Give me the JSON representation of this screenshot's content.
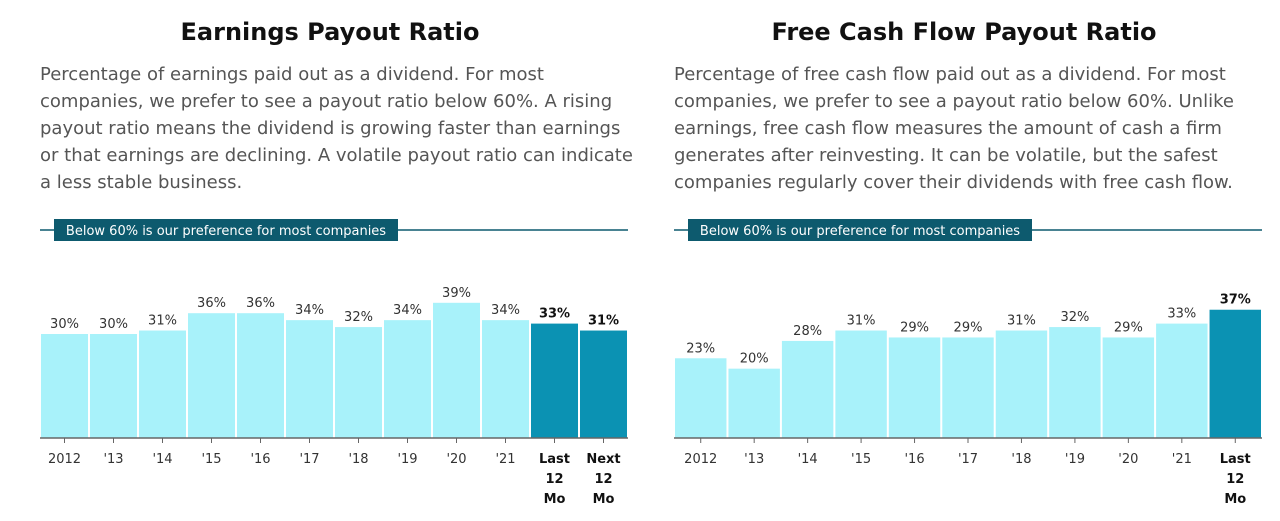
{
  "panels": [
    {
      "title": "Earnings Payout Ratio",
      "description": "Percentage of earnings paid out as a dividend. For most companies, we prefer to see a payout ratio below 60%. A rising payout ratio means the dividend is growing faster than earnings or that earnings are declining. A volatile payout ratio can indicate a less stable business."
    },
    {
      "title": "Free Cash Flow Payout Ratio",
      "description": "Percentage of free cash flow paid out as a dividend. For most companies, we prefer to see a payout ratio below 60%. Unlike earnings, free cash flow measures the amount of cash a firm generates after reinvesting. It can be volatile, but the safest companies regularly cover their dividends with free cash flow."
    }
  ],
  "chart_data": [
    {
      "type": "bar",
      "title": "Earnings Payout Ratio",
      "categories": [
        "2012",
        "'13",
        "'14",
        "'15",
        "'16",
        "'17",
        "'18",
        "'19",
        "'20",
        "'21",
        "Last 12 Mo",
        "Next 12 Mo"
      ],
      "values": [
        30,
        30,
        31,
        36,
        36,
        34,
        32,
        34,
        39,
        34,
        33,
        31
      ],
      "labels": [
        "30%",
        "30%",
        "31%",
        "36%",
        "36%",
        "34%",
        "32%",
        "34%",
        "39%",
        "34%",
        "33%",
        "31%"
      ],
      "highlighted": [
        false,
        false,
        false,
        false,
        false,
        false,
        false,
        false,
        false,
        false,
        true,
        true
      ],
      "reference_line": {
        "value": 60,
        "label": "Below 60% is our preference for most companies"
      },
      "ylim": [
        0,
        60
      ],
      "colors": {
        "bar": "#a8f2fa",
        "bar_highlight": "#0b92b3",
        "reference": "#0d5a6e",
        "axis": "#666666"
      }
    },
    {
      "type": "bar",
      "title": "Free Cash Flow Payout Ratio",
      "categories": [
        "2012",
        "'13",
        "'14",
        "'15",
        "'16",
        "'17",
        "'18",
        "'19",
        "'20",
        "'21",
        "Last 12 Mo"
      ],
      "values": [
        23,
        20,
        28,
        31,
        29,
        29,
        31,
        32,
        29,
        33,
        37
      ],
      "labels": [
        "23%",
        "20%",
        "28%",
        "31%",
        "29%",
        "29%",
        "31%",
        "32%",
        "29%",
        "33%",
        "37%"
      ],
      "highlighted": [
        false,
        false,
        false,
        false,
        false,
        false,
        false,
        false,
        false,
        false,
        true
      ],
      "reference_line": {
        "value": 60,
        "label": "Below 60% is our preference for most companies"
      },
      "ylim": [
        0,
        60
      ],
      "colors": {
        "bar": "#a8f2fa",
        "bar_highlight": "#0b92b3",
        "reference": "#0d5a6e",
        "axis": "#666666"
      }
    }
  ]
}
